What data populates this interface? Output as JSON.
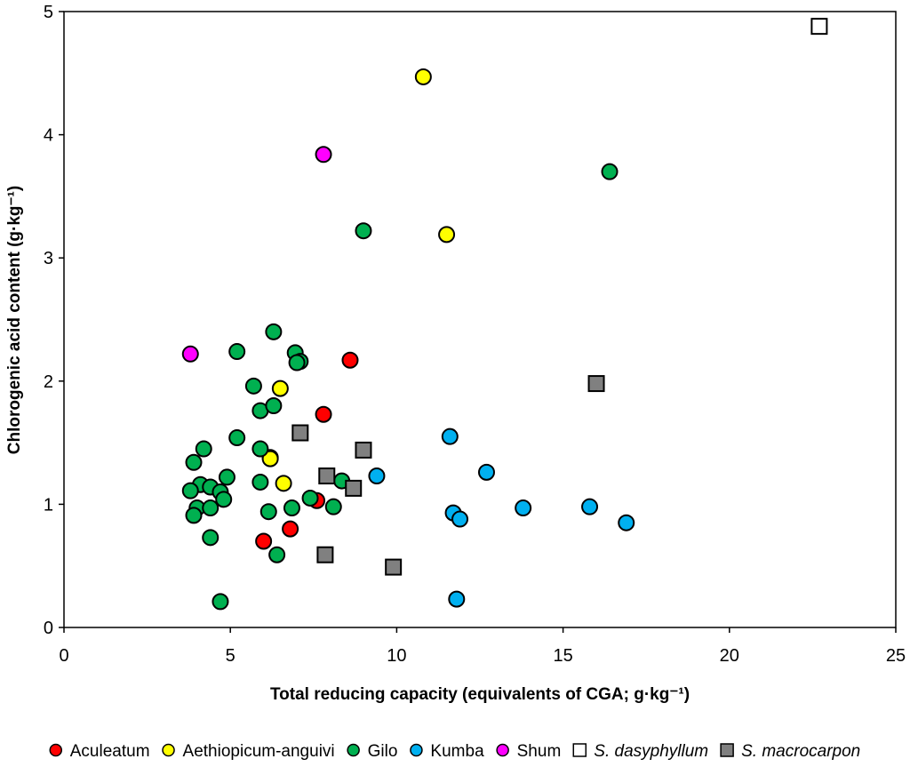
{
  "chart_data": {
    "type": "scatter",
    "xlabel": "Total reducing capacity (equivalents of CGA; g·kg⁻¹)",
    "ylabel": "Chlorogenic acid content  (g·kg⁻¹)",
    "xlim": [
      0,
      25
    ],
    "ylim": [
      0,
      5
    ],
    "xticks": [
      "0",
      "5",
      "10",
      "15",
      "20",
      "25"
    ],
    "yticks": [
      "0",
      "1",
      "2",
      "3",
      "4",
      "5"
    ],
    "legend_position": "bottom",
    "series": [
      {
        "name": "Aculeatum",
        "marker": "circle",
        "color": "#ff0000",
        "italic": false,
        "points": [
          [
            6.0,
            0.7
          ],
          [
            6.8,
            0.8
          ],
          [
            7.6,
            1.03
          ],
          [
            7.8,
            1.73
          ],
          [
            8.6,
            2.17
          ],
          [
            6.2,
            1.38
          ]
        ]
      },
      {
        "name": "Aethiopicum-anguivi",
        "marker": "circle",
        "color": "#ffff00",
        "italic": false,
        "points": [
          [
            10.8,
            4.47
          ],
          [
            11.5,
            3.19
          ],
          [
            6.5,
            1.94
          ],
          [
            6.2,
            1.37
          ],
          [
            6.6,
            1.17
          ]
        ]
      },
      {
        "name": "Gilo",
        "marker": "circle",
        "color": "#00b050",
        "italic": false,
        "points": [
          [
            16.4,
            3.7
          ],
          [
            9.0,
            3.22
          ],
          [
            6.3,
            2.4
          ],
          [
            5.2,
            2.24
          ],
          [
            6.95,
            2.23
          ],
          [
            7.1,
            2.16
          ],
          [
            7.0,
            2.15
          ],
          [
            5.7,
            1.96
          ],
          [
            5.9,
            1.76
          ],
          [
            6.3,
            1.8
          ],
          [
            5.2,
            1.54
          ],
          [
            5.9,
            1.45
          ],
          [
            4.2,
            1.45
          ],
          [
            3.9,
            1.34
          ],
          [
            4.9,
            1.22
          ],
          [
            5.9,
            1.18
          ],
          [
            4.1,
            1.16
          ],
          [
            4.4,
            1.14
          ],
          [
            3.8,
            1.11
          ],
          [
            4.7,
            1.1
          ],
          [
            4.8,
            1.04
          ],
          [
            7.4,
            1.05
          ],
          [
            8.35,
            1.19
          ],
          [
            4.0,
            0.97
          ],
          [
            4.4,
            0.97
          ],
          [
            6.85,
            0.97
          ],
          [
            8.1,
            0.98
          ],
          [
            6.15,
            0.94
          ],
          [
            3.9,
            0.91
          ],
          [
            4.4,
            0.73
          ],
          [
            6.4,
            0.59
          ],
          [
            4.7,
            0.21
          ]
        ]
      },
      {
        "name": "Kumba",
        "marker": "circle",
        "color": "#00b0f0",
        "italic": false,
        "points": [
          [
            11.6,
            1.55
          ],
          [
            12.7,
            1.26
          ],
          [
            9.4,
            1.23
          ],
          [
            13.8,
            0.97
          ],
          [
            15.8,
            0.98
          ],
          [
            16.9,
            0.85
          ],
          [
            11.7,
            0.93
          ],
          [
            11.9,
            0.88
          ],
          [
            11.8,
            0.23
          ]
        ]
      },
      {
        "name": "Shum",
        "marker": "circle",
        "color": "#ff00ff",
        "italic": false,
        "points": [
          [
            7.8,
            3.84
          ],
          [
            3.8,
            2.22
          ]
        ]
      },
      {
        "name": "S. dasyphyllum",
        "marker": "square",
        "color": "#ffffff",
        "italic": true,
        "points": [
          [
            22.7,
            4.88
          ]
        ]
      },
      {
        "name": "S. macrocarpon",
        "marker": "square",
        "color": "#808080",
        "italic": true,
        "points": [
          [
            16.0,
            1.98
          ],
          [
            7.1,
            1.58
          ],
          [
            9.0,
            1.44
          ],
          [
            7.9,
            1.23
          ],
          [
            8.7,
            1.13
          ],
          [
            7.85,
            0.59
          ],
          [
            9.9,
            0.49
          ]
        ]
      }
    ]
  }
}
